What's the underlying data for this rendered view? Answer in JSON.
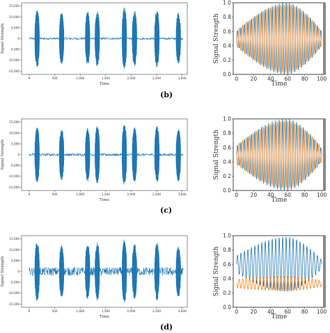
{
  "colors": {
    "blue": "#1f77b4",
    "orange": "#ff7f0e",
    "axis": "#444444",
    "text": "#333333"
  },
  "captions": [
    "(b)",
    "(c)",
    "(d)"
  ],
  "chart_data": [
    {
      "id": "b-left",
      "type": "line",
      "xlabel": "Time",
      "ylabel": "Signal Strength",
      "xlim": [
        -150,
        3100
      ],
      "ylim": [
        -16500,
        16500
      ],
      "xticks": [
        0,
        500,
        1000,
        1500,
        2000,
        2500,
        3000
      ],
      "xtick_labels": [
        "0",
        "500",
        "1,000",
        "1,500",
        "2,000",
        "2,500",
        "3,000"
      ],
      "yticks": [
        15000,
        10000,
        5000,
        0,
        -5000,
        -10000,
        -15000
      ],
      "ytick_labels": [
        "15,000",
        "10,000",
        "5,000",
        "0",
        "-5,000",
        "-10,000",
        "-15,000"
      ],
      "noise": 500,
      "bursts": [
        {
          "start": 110,
          "end": 200,
          "amp": 13500
        },
        {
          "start": 590,
          "end": 680,
          "amp": 12000
        },
        {
          "start": 1100,
          "end": 1190,
          "amp": 12500
        },
        {
          "start": 1290,
          "end": 1380,
          "amp": 13000
        },
        {
          "start": 1820,
          "end": 1910,
          "amp": 14500
        },
        {
          "start": 2020,
          "end": 2110,
          "amp": 13000
        },
        {
          "start": 2460,
          "end": 2550,
          "amp": 13500
        },
        {
          "start": 2880,
          "end": 2970,
          "amp": 12000
        }
      ]
    },
    {
      "id": "b-right",
      "type": "line",
      "xlabel": "Time",
      "ylabel": "Signal Strength",
      "xlim": [
        -4,
        104
      ],
      "ylim": [
        0.0,
        1.0
      ],
      "xticks": [
        0,
        20,
        40,
        60,
        80,
        100
      ],
      "yticks": [
        0.0,
        0.2,
        0.4,
        0.6,
        0.8,
        1.0
      ],
      "ytick_labels": [
        "0.0",
        "0.2",
        "0.4",
        "0.6",
        "0.8",
        "1.0"
      ],
      "x": [
        0,
        100
      ],
      "cycles": 24.5,
      "series": [
        {
          "color": "blue",
          "center": 0.5,
          "amp_start": 0.1,
          "amp_mid": 0.5,
          "amp_end": 0.1,
          "phase": 0.0
        },
        {
          "color": "orange",
          "center": 0.5,
          "amp_start": 0.12,
          "amp_mid": 0.48,
          "amp_end": 0.1,
          "phase": 3.14
        }
      ]
    },
    {
      "id": "c-left",
      "type": "line",
      "xlabel": "Time",
      "ylabel": "Signal Strength",
      "xlim": [
        -150,
        3100
      ],
      "ylim": [
        -16500,
        16500
      ],
      "xticks": [
        0,
        500,
        1000,
        1500,
        2000,
        2500,
        3000
      ],
      "xtick_labels": [
        "0",
        "500",
        "1,000",
        "1,500",
        "2,000",
        "2,500",
        "3,000"
      ],
      "yticks": [
        15000,
        10000,
        5000,
        0,
        -5000,
        -10000,
        -15000
      ],
      "ytick_labels": [
        "15,000",
        "10,000",
        "5,000",
        "0",
        "-5,000",
        "-10,000",
        "-15,000"
      ],
      "noise": 600,
      "bursts": [
        {
          "start": 110,
          "end": 200,
          "amp": 13000
        },
        {
          "start": 590,
          "end": 680,
          "amp": 12000
        },
        {
          "start": 1100,
          "end": 1190,
          "amp": 12500
        },
        {
          "start": 1290,
          "end": 1380,
          "amp": 13500
        },
        {
          "start": 1820,
          "end": 1910,
          "amp": 14500
        },
        {
          "start": 2020,
          "end": 2110,
          "amp": 13000
        },
        {
          "start": 2460,
          "end": 2550,
          "amp": 13500
        },
        {
          "start": 2880,
          "end": 2970,
          "amp": 12500
        }
      ]
    },
    {
      "id": "c-right",
      "type": "line",
      "xlabel": "Time",
      "ylabel": "Signal Strength",
      "xlim": [
        -4,
        104
      ],
      "ylim": [
        0.0,
        1.0
      ],
      "xticks": [
        0,
        20,
        40,
        60,
        80,
        100
      ],
      "yticks": [
        0.0,
        0.2,
        0.4,
        0.6,
        0.8,
        1.0
      ],
      "ytick_labels": [
        "0.0",
        "0.2",
        "0.4",
        "0.6",
        "0.8",
        "1.0"
      ],
      "x": [
        0,
        100
      ],
      "cycles": 24.5,
      "series": [
        {
          "color": "blue",
          "center": 0.5,
          "amp_start": 0.12,
          "amp_mid": 0.5,
          "amp_end": 0.08,
          "phase": 0.0
        },
        {
          "color": "orange",
          "center": 0.5,
          "amp_start": 0.14,
          "amp_mid": 0.47,
          "amp_end": 0.1,
          "phase": 3.14
        }
      ]
    },
    {
      "id": "d-left",
      "type": "line",
      "xlabel": "Time",
      "ylabel": "Signal Strength",
      "xlim": [
        -150,
        3100
      ],
      "ylim": [
        -16500,
        16500
      ],
      "xticks": [
        0,
        500,
        1000,
        1500,
        2000,
        2500,
        3000
      ],
      "xtick_labels": [
        "0",
        "500",
        "1,000",
        "1,500",
        "2,000",
        "2,500",
        "3,000"
      ],
      "yticks": [
        15000,
        10000,
        5000,
        0,
        -5000,
        -10000,
        -15000
      ],
      "ytick_labels": [
        "15,000",
        "10,000",
        "5,000",
        "0",
        "-5,000",
        "-10,000",
        "-15,000"
      ],
      "noise": 2000,
      "bursts": [
        {
          "start": 110,
          "end": 200,
          "amp": 14000
        },
        {
          "start": 590,
          "end": 680,
          "amp": 12000
        },
        {
          "start": 1100,
          "end": 1190,
          "amp": 13000
        },
        {
          "start": 1290,
          "end": 1380,
          "amp": 13500
        },
        {
          "start": 1820,
          "end": 1910,
          "amp": 15000
        },
        {
          "start": 2020,
          "end": 2110,
          "amp": 13000
        },
        {
          "start": 2460,
          "end": 2550,
          "amp": 13500
        },
        {
          "start": 2880,
          "end": 2970,
          "amp": 12000
        }
      ]
    },
    {
      "id": "d-right",
      "type": "line",
      "xlabel": "Time",
      "ylabel": "Signal Strength",
      "xlim": [
        -4,
        104
      ],
      "ylim": [
        0.0,
        1.0
      ],
      "xticks": [
        0,
        20,
        40,
        60,
        80,
        100
      ],
      "yticks": [
        0.0,
        0.2,
        0.4,
        0.6,
        0.8,
        1.0
      ],
      "ytick_labels": [
        "0.0",
        "0.2",
        "0.4",
        "0.6",
        "0.8",
        "1.0"
      ],
      "x": [
        0,
        100
      ],
      "cycles": 24.5,
      "series": [
        {
          "color": "blue",
          "center": 0.6,
          "amp_start": 0.12,
          "amp_mid": 0.38,
          "amp_end": 0.06,
          "phase": 0.0
        },
        {
          "color": "orange",
          "center": 0.33,
          "amp_start": 0.06,
          "amp_mid": 0.1,
          "amp_end": 0.04,
          "phase": 3.14
        }
      ]
    }
  ]
}
